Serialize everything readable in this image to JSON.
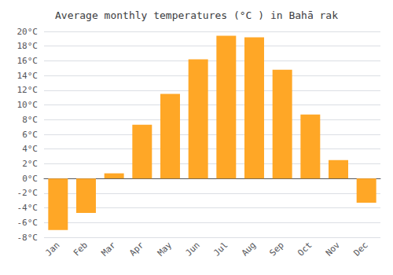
{
  "chart_data": {
    "type": "bar",
    "title": "Average monthly temperatures (°C ) in Bahā rak",
    "categories": [
      "Jan",
      "Feb",
      "Mar",
      "Apr",
      "May",
      "Jun",
      "Jul",
      "Aug",
      "Sep",
      "Oct",
      "Nov",
      "Dec"
    ],
    "values": [
      -7.0,
      -4.7,
      0.7,
      7.3,
      11.5,
      16.2,
      19.4,
      19.2,
      14.8,
      8.7,
      2.5,
      -3.3
    ],
    "color": "#FFA726",
    "ylim": [
      -8,
      20
    ],
    "yticks": [
      {
        "value": -8,
        "label": "-8°C"
      },
      {
        "value": -6,
        "label": "-6°C"
      },
      {
        "value": -4,
        "label": "-4°C"
      },
      {
        "value": -2,
        "label": "-2°C"
      },
      {
        "value": 0,
        "label": "0°C"
      },
      {
        "value": 2,
        "label": "2°C"
      },
      {
        "value": 4,
        "label": "4°C"
      },
      {
        "value": 6,
        "label": "6°C"
      },
      {
        "value": 8,
        "label": "8°C"
      },
      {
        "value": 10,
        "label": "10°C"
      },
      {
        "value": 12,
        "label": "12°C"
      },
      {
        "value": 14,
        "label": "14°C"
      },
      {
        "value": 16,
        "label": "16°C"
      },
      {
        "value": 18,
        "label": "18°C"
      },
      {
        "value": 20,
        "label": "20°C"
      }
    ],
    "grid": true
  }
}
